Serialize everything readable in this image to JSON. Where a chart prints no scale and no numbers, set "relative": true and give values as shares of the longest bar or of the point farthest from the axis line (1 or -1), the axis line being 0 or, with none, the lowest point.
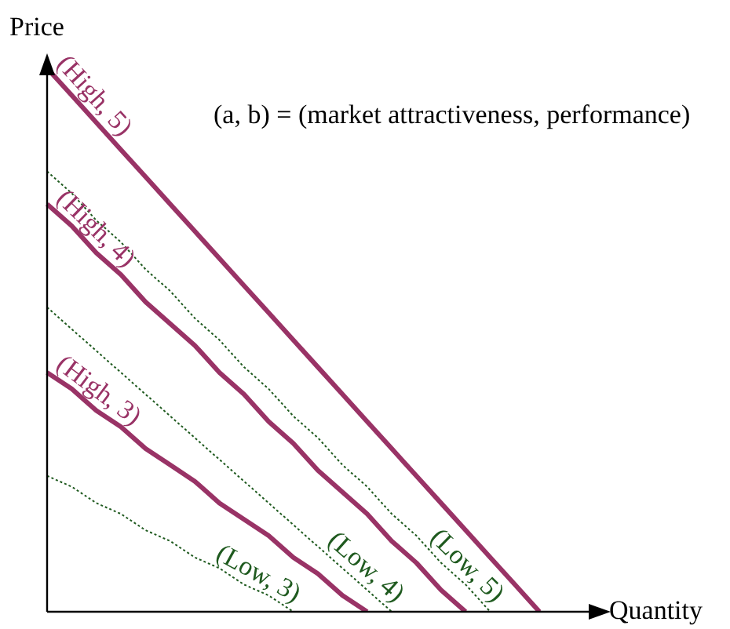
{
  "chart_data": {
    "type": "line",
    "relative": true,
    "xlabel": "Quantity",
    "ylabel": "Price",
    "annotations": [
      "(a, b) = (market attractiveness, performance)"
    ],
    "legend": false,
    "marker": "none",
    "categories": [
      null,
      null,
      null,
      null,
      null,
      null,
      null,
      null,
      null,
      null,
      null,
      null,
      null,
      null,
      null,
      null,
      null,
      null,
      null,
      null,
      null,
      null,
      null
    ],
    "series": [
      {
        "name": "(High, 5)",
        "color": "#993366",
        "line_style": "solid",
        "values": [
          1,
          0.95,
          0.9,
          0.85,
          0.8,
          0.75,
          0.7,
          0.65,
          0.6,
          0.55,
          0.5,
          0.45,
          0.4,
          0.35,
          0.3,
          0.25,
          0.2,
          0.15,
          0.1,
          0.05,
          0,
          null,
          null
        ]
      },
      {
        "name": "(High, 4)",
        "color": "#993366",
        "line_style": "solid",
        "values": [
          0.75,
          0.71,
          0.66,
          0.62,
          0.57,
          0.53,
          0.49,
          0.44,
          0.4,
          0.35,
          0.31,
          0.26,
          0.22,
          0.18,
          0.13,
          0.09,
          0.04,
          0,
          null,
          null,
          null,
          null,
          null
        ]
      },
      {
        "name": "(High, 3)",
        "color": "#993366",
        "line_style": "solid",
        "values": [
          0.44,
          0.41,
          0.37,
          0.34,
          0.3,
          0.27,
          0.24,
          0.2,
          0.17,
          0.14,
          0.1,
          0.07,
          0.03,
          0,
          null,
          null,
          null,
          null,
          null,
          null,
          null,
          null,
          null
        ]
      },
      {
        "name": "(Low, 5)",
        "color": "#1f5a1f",
        "line_style": "dotted",
        "values": [
          0.81,
          0.77,
          0.72,
          0.68,
          0.63,
          0.59,
          0.54,
          0.5,
          0.45,
          0.41,
          0.36,
          0.32,
          0.27,
          0.23,
          0.18,
          0.14,
          0.09,
          0.05,
          0,
          null,
          null,
          null,
          null
        ]
      },
      {
        "name": "(Low, 4)",
        "color": "#1f5a1f",
        "line_style": "dotted",
        "values": [
          0.56,
          0.52,
          0.48,
          0.44,
          0.4,
          0.36,
          0.32,
          0.28,
          0.24,
          0.2,
          0.16,
          0.12,
          0.08,
          0.04,
          0,
          null,
          null,
          null,
          null,
          null,
          null,
          null,
          null
        ]
      },
      {
        "name": "(Low, 3)",
        "color": "#1f5a1f",
        "line_style": "dotted",
        "values": [
          0.25,
          0.23,
          0.2,
          0.18,
          0.15,
          0.13,
          0.1,
          0.08,
          0.05,
          0.03,
          0,
          null,
          null,
          null,
          null,
          null,
          null,
          null,
          null,
          null,
          null,
          null,
          null
        ]
      }
    ]
  }
}
